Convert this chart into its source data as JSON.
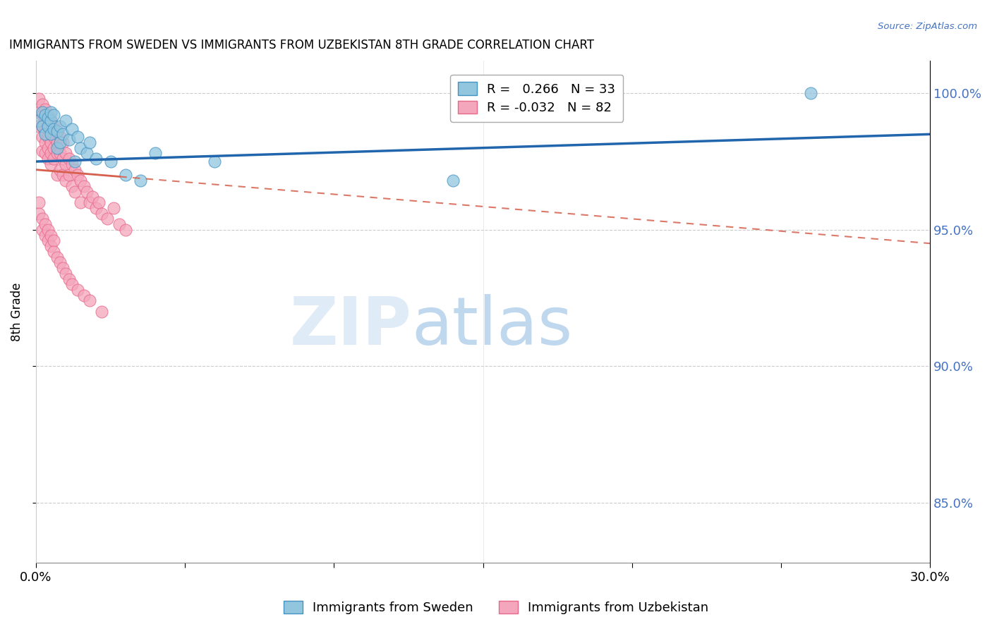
{
  "title": "IMMIGRANTS FROM SWEDEN VS IMMIGRANTS FROM UZBEKISTAN 8TH GRADE CORRELATION CHART",
  "source": "Source: ZipAtlas.com",
  "ylabel": "8th Grade",
  "ytick_labels": [
    "85.0%",
    "90.0%",
    "95.0%",
    "100.0%"
  ],
  "ytick_values": [
    0.85,
    0.9,
    0.95,
    1.0
  ],
  "xlim": [
    0.0,
    0.3
  ],
  "ylim": [
    0.828,
    1.012
  ],
  "legend_sweden": "R =   0.266   N = 33",
  "legend_uzbekistan": "R = -0.032   N = 82",
  "sweden_color": "#92c5de",
  "uzbekistan_color": "#f4a6bc",
  "sweden_edge_color": "#4393c3",
  "uzbekistan_edge_color": "#e8688a",
  "sweden_line_color": "#2166ac",
  "uzbekistan_line_color": "#d6604d",
  "sweden_x": [
    0.001,
    0.002,
    0.002,
    0.003,
    0.003,
    0.004,
    0.004,
    0.005,
    0.005,
    0.005,
    0.006,
    0.006,
    0.007,
    0.007,
    0.008,
    0.008,
    0.009,
    0.01,
    0.011,
    0.012,
    0.013,
    0.014,
    0.015,
    0.017,
    0.018,
    0.02,
    0.025,
    0.03,
    0.035,
    0.04,
    0.06,
    0.14,
    0.26
  ],
  "sweden_y": [
    0.99,
    0.988,
    0.993,
    0.985,
    0.992,
    0.988,
    0.991,
    0.985,
    0.99,
    0.993,
    0.987,
    0.992,
    0.98,
    0.986,
    0.982,
    0.988,
    0.985,
    0.99,
    0.983,
    0.987,
    0.975,
    0.984,
    0.98,
    0.978,
    0.982,
    0.976,
    0.975,
    0.97,
    0.968,
    0.978,
    0.975,
    0.968,
    1.0
  ],
  "uzbekistan_x": [
    0.001,
    0.001,
    0.001,
    0.002,
    0.002,
    0.002,
    0.002,
    0.002,
    0.003,
    0.003,
    0.003,
    0.003,
    0.003,
    0.004,
    0.004,
    0.004,
    0.004,
    0.004,
    0.005,
    0.005,
    0.005,
    0.005,
    0.005,
    0.006,
    0.006,
    0.006,
    0.006,
    0.007,
    0.007,
    0.007,
    0.007,
    0.008,
    0.008,
    0.008,
    0.009,
    0.009,
    0.009,
    0.01,
    0.01,
    0.01,
    0.011,
    0.011,
    0.012,
    0.012,
    0.013,
    0.013,
    0.014,
    0.015,
    0.015,
    0.016,
    0.017,
    0.018,
    0.019,
    0.02,
    0.021,
    0.022,
    0.024,
    0.026,
    0.028,
    0.03,
    0.001,
    0.001,
    0.002,
    0.002,
    0.003,
    0.003,
    0.004,
    0.004,
    0.005,
    0.005,
    0.006,
    0.006,
    0.007,
    0.008,
    0.009,
    0.01,
    0.011,
    0.012,
    0.014,
    0.016,
    0.018,
    0.022
  ],
  "uzbekistan_y": [
    0.998,
    0.993,
    0.988,
    0.996,
    0.992,
    0.988,
    0.984,
    0.979,
    0.994,
    0.99,
    0.986,
    0.982,
    0.978,
    0.992,
    0.988,
    0.984,
    0.98,
    0.976,
    0.99,
    0.986,
    0.982,
    0.978,
    0.974,
    0.988,
    0.984,
    0.98,
    0.976,
    0.986,
    0.982,
    0.978,
    0.97,
    0.984,
    0.978,
    0.972,
    0.982,
    0.976,
    0.97,
    0.978,
    0.974,
    0.968,
    0.976,
    0.97,
    0.974,
    0.966,
    0.972,
    0.964,
    0.97,
    0.968,
    0.96,
    0.966,
    0.964,
    0.96,
    0.962,
    0.958,
    0.96,
    0.956,
    0.954,
    0.958,
    0.952,
    0.95,
    0.96,
    0.956,
    0.954,
    0.95,
    0.952,
    0.948,
    0.95,
    0.946,
    0.948,
    0.944,
    0.946,
    0.942,
    0.94,
    0.938,
    0.936,
    0.934,
    0.932,
    0.93,
    0.928,
    0.926,
    0.924,
    0.92
  ]
}
